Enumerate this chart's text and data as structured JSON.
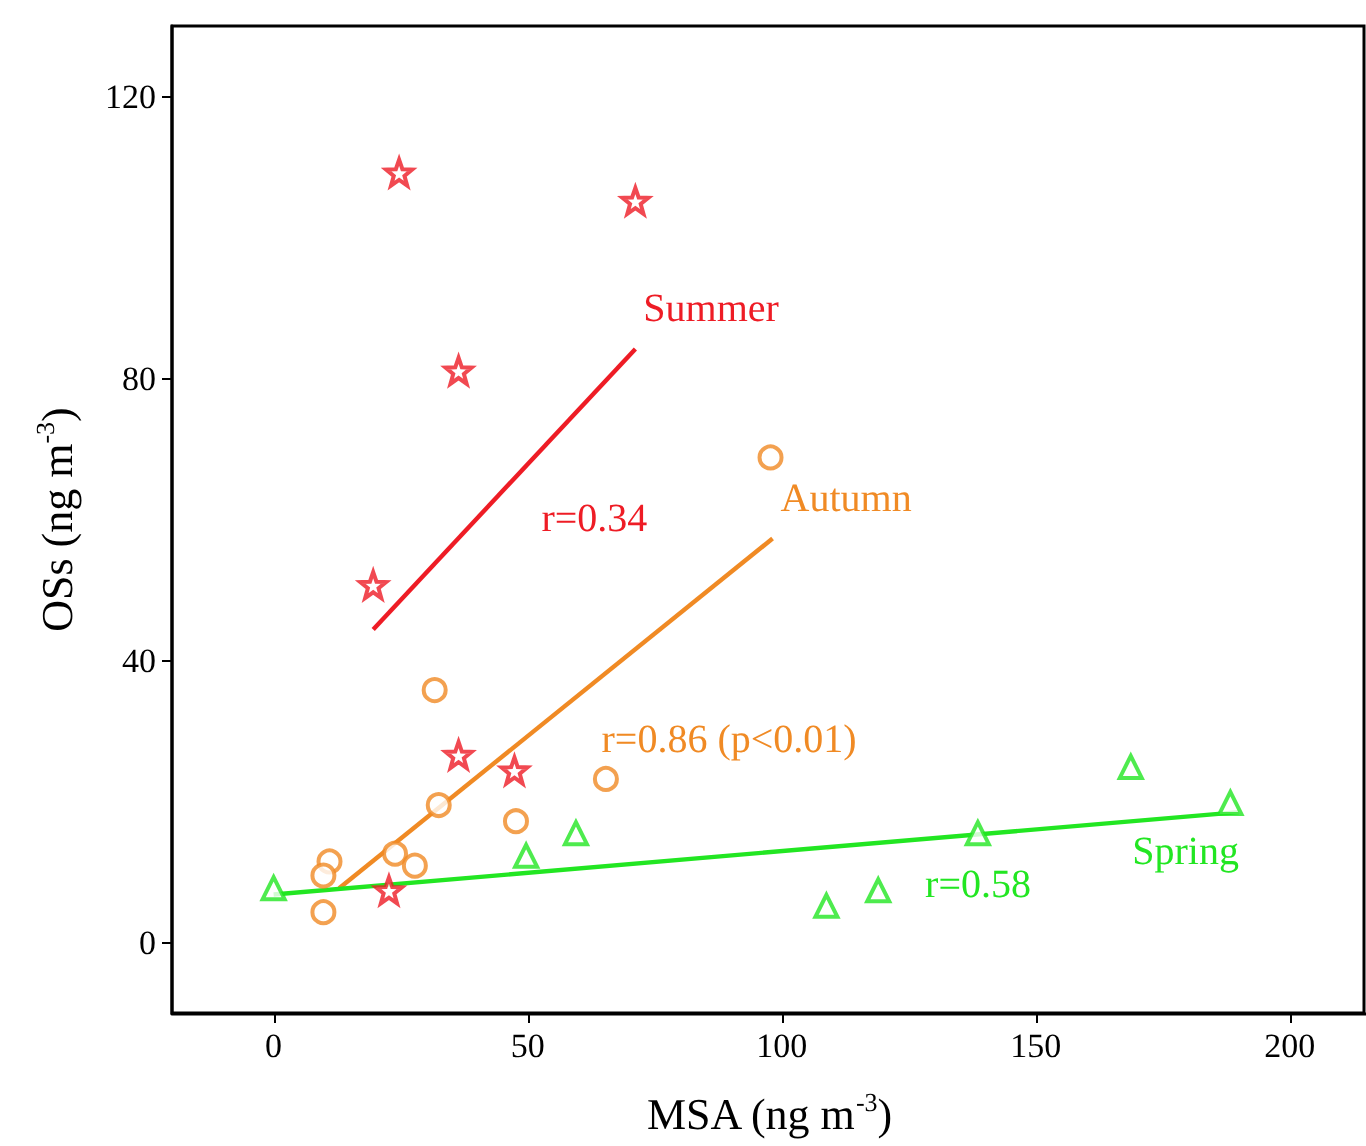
{
  "chart_data": {
    "type": "scatter",
    "xlabel": "MSA (ng m$^{-3}$)",
    "ylabel": "OSs (ng m$^{-3}$)",
    "xlim": [
      -20,
      215
    ],
    "ylim": [
      -10,
      130
    ],
    "xticks": [
      0,
      50,
      100,
      150,
      200
    ],
    "yticks": [
      0,
      40,
      80,
      120
    ],
    "grid": false,
    "legend": false,
    "series": [
      {
        "name": "Summer",
        "marker": "star",
        "color": "#ee1c25",
        "x": [
          24.7,
          71.2,
          36.4,
          19.6,
          36.4,
          47.4,
          22.7
        ],
        "values": [
          109.2,
          105.2,
          81.1,
          50.7,
          26.6,
          24.4,
          7.4
        ]
      },
      {
        "type": "line",
        "color": "#ee1c25",
        "marker": "none",
        "x": [
          19.6,
          71.2
        ],
        "values": [
          44.4,
          84.2
        ]
      },
      {
        "name": "Autumn",
        "marker": "circle",
        "color": "#f08a24",
        "x": [
          97.8,
          31.7,
          65.4,
          32.5,
          47.7,
          11,
          9.8,
          9.8,
          23.9,
          27.8
        ],
        "values": [
          68.8,
          35.8,
          23.2,
          19.5,
          17.2,
          11.5,
          9.5,
          4.3,
          12.6,
          10.9
        ]
      },
      {
        "type": "line",
        "color": "#f08a24",
        "marker": "none",
        "x": [
          12.9,
          98.2
        ],
        "values": [
          7.7,
          57.3
        ]
      },
      {
        "name": "Spring",
        "marker": "triangle",
        "color": "#22e622",
        "x": [
          0,
          49.7,
          59.5,
          108.8,
          119,
          138.6,
          168.7,
          188.3
        ],
        "values": [
          7.7,
          12.3,
          15.5,
          5.2,
          7.4,
          15.5,
          24.9,
          19.8
        ]
      },
      {
        "type": "line",
        "color": "#22e622",
        "marker": "none",
        "x": [
          0,
          190
        ],
        "values": [
          6.8,
          18.5
        ]
      }
    ],
    "annotations": [
      "r=0.34",
      "r=0.86 (p<0.01)",
      "r=0.58"
    ]
  }
}
